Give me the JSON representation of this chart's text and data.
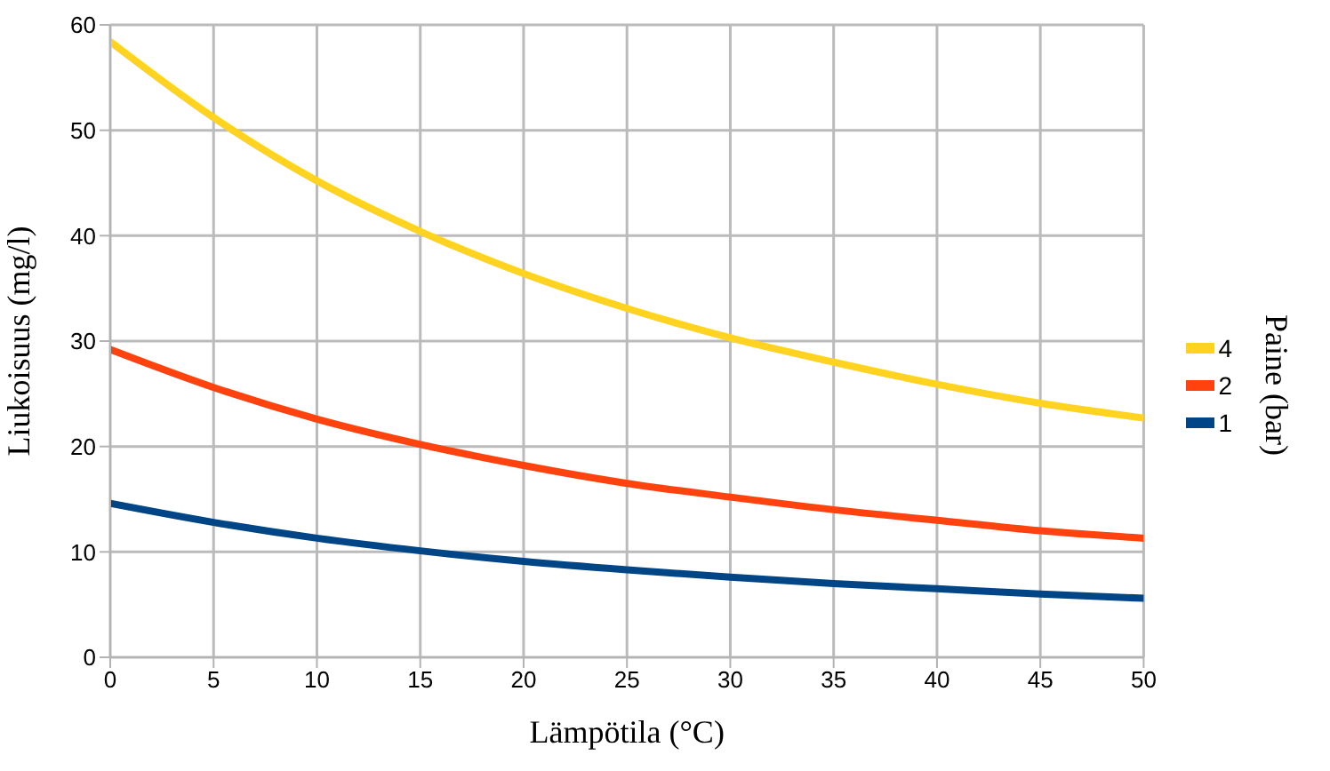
{
  "chart_data": {
    "type": "line",
    "xlabel": "Lämpötila (°C)",
    "ylabel": "Liukoisuus (mg/l)",
    "legend_title": "Paine (bar)",
    "x": [
      0,
      5,
      10,
      15,
      20,
      25,
      30,
      35,
      40,
      45,
      50
    ],
    "series": [
      {
        "name": "4",
        "color": "#ffd320",
        "values": [
          58.4,
          51.2,
          45.2,
          40.4,
          36.4,
          33.1,
          30.3,
          28.0,
          25.9,
          24.1,
          22.7
        ]
      },
      {
        "name": "2",
        "color": "#ff420e",
        "values": [
          29.2,
          25.6,
          22.6,
          20.2,
          18.2,
          16.5,
          15.2,
          14.0,
          13.0,
          12.0,
          11.3
        ]
      },
      {
        "name": "1",
        "color": "#004586",
        "values": [
          14.6,
          12.8,
          11.3,
          10.1,
          9.1,
          8.3,
          7.6,
          7.0,
          6.5,
          6.0,
          5.6
        ]
      }
    ],
    "xlim": [
      0,
      50
    ],
    "xticks": [
      0,
      5,
      10,
      15,
      20,
      25,
      30,
      35,
      40,
      45,
      50
    ],
    "ylim": [
      0,
      60
    ],
    "yticks": [
      0,
      10,
      20,
      30,
      40,
      50,
      60
    ],
    "grid": true,
    "legend": "right",
    "marker": "none",
    "line_style": "solid"
  }
}
